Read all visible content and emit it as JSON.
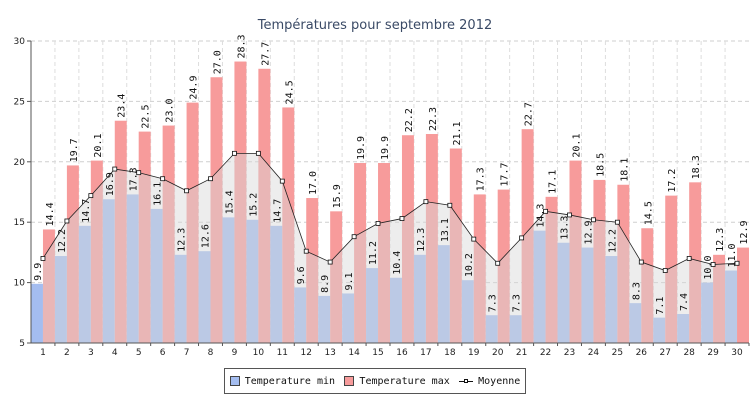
{
  "chart_data": {
    "type": "bar",
    "title": "Températures pour septembre 2012",
    "xlabel": "",
    "ylabel": "",
    "ylim": [
      5,
      30
    ],
    "yticks": [
      5,
      10,
      15,
      20,
      25,
      30
    ],
    "grid": true,
    "legend_position": "bottom-center",
    "categories": [
      "1",
      "2",
      "3",
      "4",
      "5",
      "6",
      "7",
      "8",
      "9",
      "10",
      "11",
      "12",
      "13",
      "14",
      "15",
      "16",
      "17",
      "18",
      "19",
      "20",
      "21",
      "22",
      "23",
      "24",
      "25",
      "26",
      "27",
      "28",
      "29",
      "30"
    ],
    "series": [
      {
        "name": "Temperature min",
        "kind": "bar",
        "color": "#a4bdf0",
        "values": [
          9.9,
          12.2,
          14.7,
          16.9,
          17.3,
          16.1,
          12.3,
          12.6,
          15.4,
          15.2,
          14.7,
          9.6,
          8.9,
          9.1,
          11.2,
          10.4,
          12.3,
          13.1,
          10.2,
          7.3,
          7.3,
          14.3,
          13.3,
          12.9,
          12.2,
          8.3,
          7.1,
          7.4,
          10.0,
          11.0
        ]
      },
      {
        "name": "Temperature max",
        "kind": "bar",
        "color": "#f79b9b",
        "values": [
          14.4,
          19.7,
          20.1,
          23.4,
          22.5,
          23.0,
          24.9,
          27.0,
          28.3,
          27.7,
          24.5,
          17.0,
          15.9,
          19.9,
          19.9,
          22.2,
          22.3,
          21.1,
          17.3,
          17.7,
          22.7,
          17.1,
          20.1,
          18.5,
          18.1,
          14.5,
          17.2,
          18.3,
          12.3,
          12.9
        ]
      },
      {
        "name": "Moyenne",
        "kind": "line",
        "color": "#111111",
        "values": [
          12.0,
          15.1,
          17.2,
          19.4,
          19.1,
          18.6,
          17.6,
          18.6,
          20.7,
          20.7,
          18.4,
          12.6,
          11.7,
          13.8,
          14.9,
          15.3,
          16.7,
          16.4,
          13.6,
          11.6,
          13.7,
          15.9,
          15.6,
          15.2,
          15.0,
          11.7,
          11.0,
          12.0,
          11.5,
          11.6
        ]
      }
    ]
  }
}
